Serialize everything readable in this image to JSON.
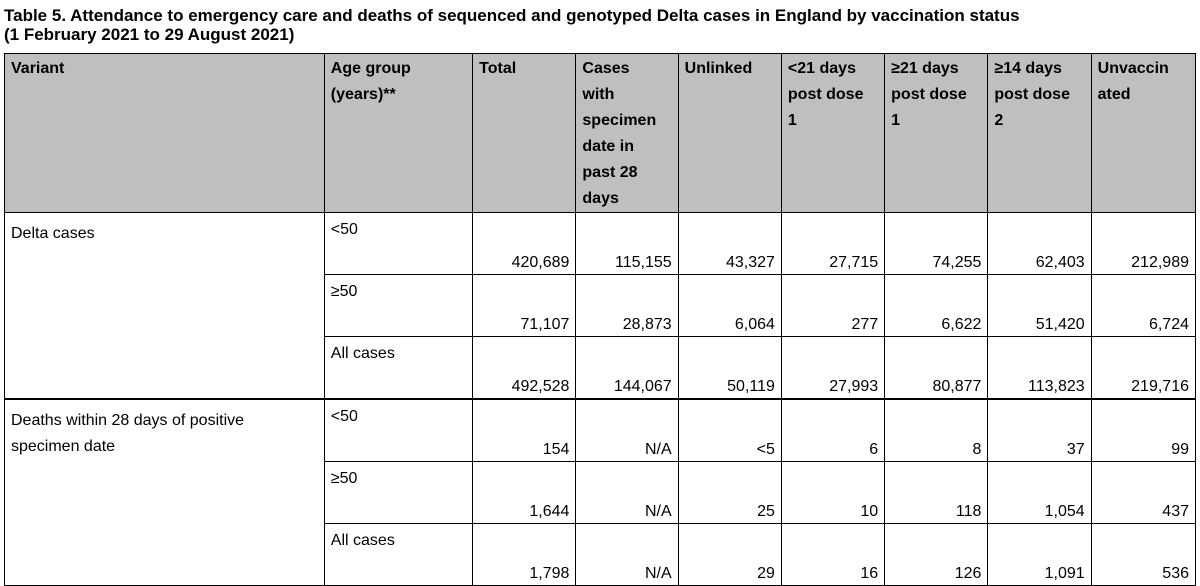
{
  "title_line1": "Table 5. Attendance to emergency care and deaths of sequenced and genotyped Delta cases in England by vaccination status",
  "title_line2": "(1 February 2021 to 29 August 2021)",
  "headers": {
    "variant": "Variant",
    "age_group_l1": "Age group",
    "age_group_l2": "(years)**",
    "total": "Total",
    "cases28_l1": "Cases",
    "cases28_l2": "with",
    "cases28_l3": "specimen",
    "cases28_l4": "date in",
    "cases28_l5": "past 28",
    "cases28_l6": "days",
    "unlinked": "Unlinked",
    "lt21_l1": "<21 days",
    "lt21_l2": "post dose",
    "lt21_l3": "1",
    "ge21_l1": "≥21 days",
    "ge21_l2": "post dose",
    "ge21_l3": "1",
    "ge14_l1": "≥14 days",
    "ge14_l2": "post dose",
    "ge14_l3": "2",
    "unvacc_l1": "Unvaccin",
    "unvacc_l2": "ated"
  },
  "groups": {
    "delta": "Delta cases",
    "deaths_l1": "Deaths within 28 days of positive",
    "deaths_l2": "specimen date"
  },
  "rows": [
    {
      "age": "<50",
      "total": "420,689",
      "cases28": "115,155",
      "unlinked": "43,327",
      "lt21": "27,715",
      "ge21": "74,255",
      "ge14": "62,403",
      "unvacc": "212,989"
    },
    {
      "age": "≥50",
      "total": "71,107",
      "cases28": "28,873",
      "unlinked": "6,064",
      "lt21": "277",
      "ge21": "6,622",
      "ge14": "51,420",
      "unvacc": "6,724"
    },
    {
      "age": "All cases",
      "total": "492,528",
      "cases28": "144,067",
      "unlinked": "50,119",
      "lt21": "27,993",
      "ge21": "80,877",
      "ge14": "113,823",
      "unvacc": "219,716"
    },
    {
      "age": "<50",
      "total": "154",
      "cases28": "N/A",
      "unlinked": "<5",
      "lt21": "6",
      "ge21": "8",
      "ge14": "37",
      "unvacc": "99"
    },
    {
      "age": "≥50",
      "total": "1,644",
      "cases28": "N/A",
      "unlinked": "25",
      "lt21": "10",
      "ge21": "118",
      "ge14": "1,054",
      "unvacc": "437"
    },
    {
      "age": "All cases",
      "total": "1,798",
      "cases28": "N/A",
      "unlinked": "29",
      "lt21": "16",
      "ge21": "126",
      "ge14": "1,091",
      "unvacc": "536"
    }
  ]
}
